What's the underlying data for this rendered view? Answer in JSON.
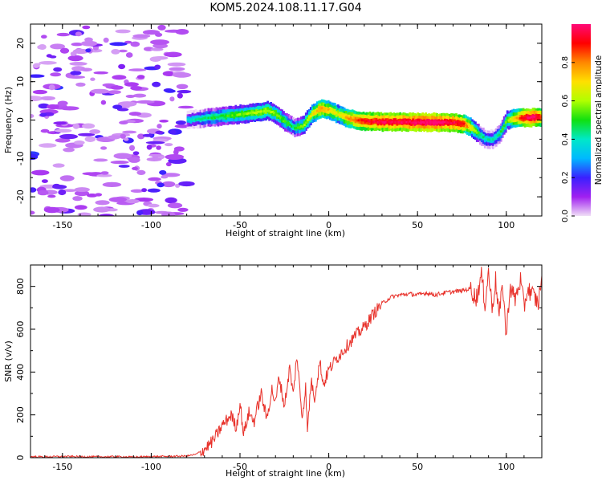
{
  "figure_title": "KOM5.2024.108.11.17.G04",
  "colors": {
    "snr_line": "#e8312a",
    "axis": "#000000",
    "background": "#ffffff"
  },
  "chart_data": [
    {
      "type": "heatmap",
      "title": "KOM5.2024.108.11.17.G04",
      "xlabel": "Height of straight line (km)",
      "ylabel": "Frequency (Hz)",
      "xlim": [
        -168,
        120
      ],
      "ylim": [
        -25,
        25
      ],
      "x_ticks": [
        -150,
        -100,
        -50,
        0,
        50,
        100
      ],
      "y_ticks": [
        -20,
        -10,
        0,
        10,
        20
      ],
      "colorbar": {
        "label": "Normalized spectral amplitude",
        "range": [
          0,
          1
        ],
        "ticks": [
          "0.0",
          "0.2",
          "0.4",
          "0.6",
          "0.8"
        ],
        "colormap": "gist_ncar",
        "stops": [
          "#f0dff6",
          "#a020f0",
          "#3a20ff",
          "#00b8ff",
          "#00e8c8",
          "#10e010",
          "#b0ff00",
          "#ffe000",
          "#ff8800",
          "#ff0000",
          "#ff0a78"
        ]
      },
      "noise_region_x": [
        -168,
        -80
      ],
      "ridge": {
        "x": [
          -80,
          -70,
          -60,
          -50,
          -40,
          -35,
          -30,
          -25,
          -20,
          -15,
          -10,
          -5,
          0,
          5,
          10,
          15,
          20,
          30,
          40,
          50,
          60,
          70,
          75,
          80,
          85,
          88,
          92,
          96,
          100,
          105,
          110,
          115,
          120
        ],
        "freq": [
          0,
          0.5,
          1,
          1.5,
          2,
          2.5,
          1.5,
          -0.5,
          -2,
          -1.5,
          1.5,
          3,
          2.5,
          1.5,
          0.5,
          0,
          -0.3,
          -0.5,
          -0.5,
          -0.6,
          -0.6,
          -0.7,
          -1,
          -2,
          -4,
          -5,
          -5,
          -3.5,
          0,
          0.5,
          0.6,
          0.7,
          0.7
        ],
        "amplitude": [
          0.3,
          0.4,
          0.45,
          0.5,
          0.55,
          0.55,
          0.5,
          0.45,
          0.4,
          0.5,
          0.6,
          0.75,
          0.65,
          0.6,
          0.7,
          0.8,
          0.85,
          0.9,
          0.9,
          0.95,
          0.95,
          0.9,
          0.85,
          0.6,
          0.4,
          0.35,
          0.35,
          0.4,
          0.5,
          0.7,
          0.9,
          0.95,
          0.8
        ]
      }
    },
    {
      "type": "line",
      "xlabel": "Height of straight line (km)",
      "ylabel": "SNR (v/v)",
      "xlim": [
        -168,
        120
      ],
      "ylim": [
        0,
        900
      ],
      "x_ticks": [
        -150,
        -100,
        -50,
        0,
        50,
        100
      ],
      "y_ticks": [
        0,
        200,
        400,
        600,
        800
      ],
      "series": [
        {
          "x": [
            -168,
            -160,
            -150,
            -140,
            -130,
            -120,
            -110,
            -100,
            -90,
            -80,
            -75,
            -70,
            -65,
            -60,
            -55,
            -52,
            -50,
            -48,
            -45,
            -42,
            -40,
            -38,
            -35,
            -32,
            -30,
            -28,
            -25,
            -22,
            -20,
            -18,
            -15,
            -13,
            -12,
            -10,
            -8,
            -5,
            -3,
            0,
            5,
            10,
            15,
            20,
            25,
            30,
            35,
            40,
            45,
            50,
            55,
            60,
            65,
            70,
            75,
            80,
            83,
            86,
            88,
            90,
            92,
            94,
            96,
            98,
            100,
            102,
            105,
            108,
            110,
            112,
            115,
            118,
            120
          ],
          "y": [
            5,
            4,
            6,
            5,
            4,
            5,
            3,
            5,
            6,
            8,
            15,
            40,
            80,
            150,
            200,
            140,
            260,
            110,
            210,
            170,
            240,
            300,
            180,
            320,
            250,
            380,
            240,
            420,
            290,
            480,
            190,
            330,
            120,
            360,
            280,
            450,
            340,
            410,
            470,
            520,
            570,
            610,
            670,
            720,
            750,
            760,
            765,
            760,
            770,
            760,
            770,
            775,
            780,
            790,
            740,
            850,
            720,
            870,
            700,
            830,
            660,
            810,
            560,
            800,
            740,
            830,
            700,
            790,
            760,
            720,
            850
          ]
        }
      ]
    }
  ]
}
